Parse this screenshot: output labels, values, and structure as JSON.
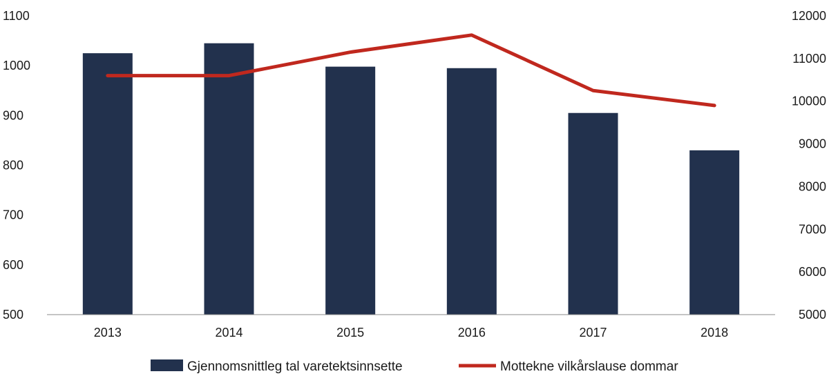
{
  "chart_data": {
    "type": "bar",
    "categories": [
      "2013",
      "2014",
      "2015",
      "2016",
      "2017",
      "2018"
    ],
    "series": [
      {
        "name": "Gjennomsnittleg tal varetektsinnsette",
        "type": "bar",
        "axis": "left",
        "values": [
          1025,
          1045,
          998,
          995,
          905,
          830
        ],
        "color": "#22314d"
      },
      {
        "name": "Mottekne vilkårslause dommar",
        "type": "line",
        "axis": "right",
        "values": [
          10600,
          10600,
          11150,
          11550,
          10250,
          9900
        ],
        "color": "#c0281e"
      }
    ],
    "y_left": {
      "min": 500,
      "max": 1100,
      "ticks": [
        "500",
        "600",
        "700",
        "800",
        "900",
        "1000",
        "1100"
      ]
    },
    "y_right": {
      "min": 5000,
      "max": 12000,
      "ticks": [
        "5000",
        "6000",
        "7000",
        "8000",
        "9000",
        "10000",
        "11000",
        "12000"
      ]
    },
    "title": "",
    "xlabel": "",
    "ylabel": "",
    "grid": false,
    "legend_position": "bottom"
  }
}
